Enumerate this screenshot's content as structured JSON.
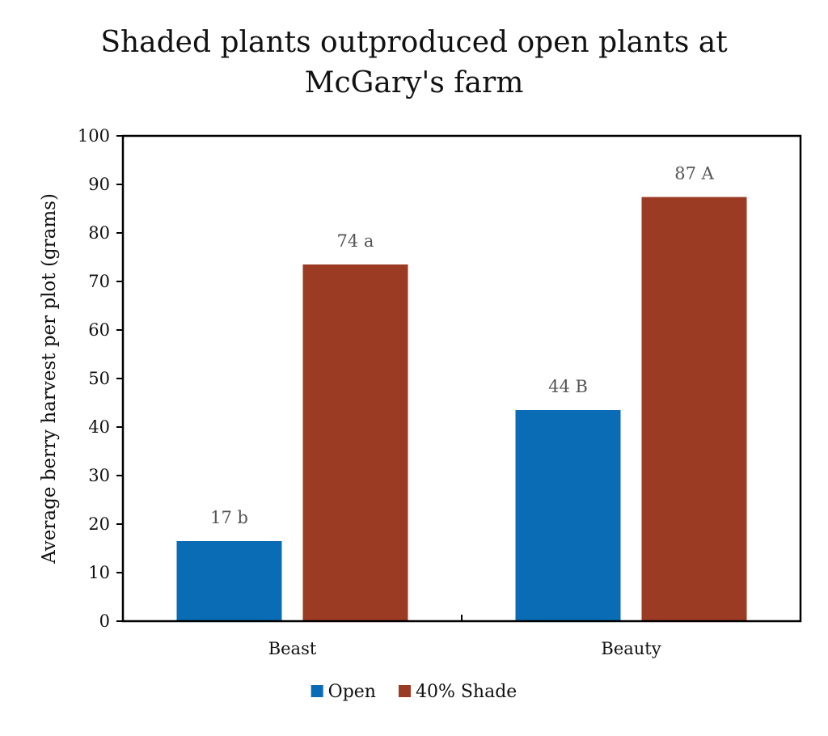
{
  "chart_data": {
    "type": "bar",
    "title_lines": [
      "Shaded plants outproduced open plants at",
      "McGary's farm"
    ],
    "xlabel": "",
    "ylabel": "Average berry harvest per plot (grams)",
    "ylim": [
      0,
      100
    ],
    "yticks": [
      "0",
      "10",
      "20",
      "30",
      "40",
      "50",
      "60",
      "70",
      "80",
      "90",
      "100"
    ],
    "categories": [
      "Beast",
      "Beauty"
    ],
    "series": [
      {
        "name": "Open",
        "color": "#0A6CB4",
        "values": [
          16.5,
          43.5
        ],
        "labels": [
          "17 b",
          "44 B"
        ]
      },
      {
        "name": "40% Shade",
        "color": "#9C3B23",
        "values": [
          73.5,
          87.4
        ],
        "labels": [
          "74 a",
          "87 A"
        ]
      }
    ],
    "legend_position": "bottom",
    "grid": false
  }
}
